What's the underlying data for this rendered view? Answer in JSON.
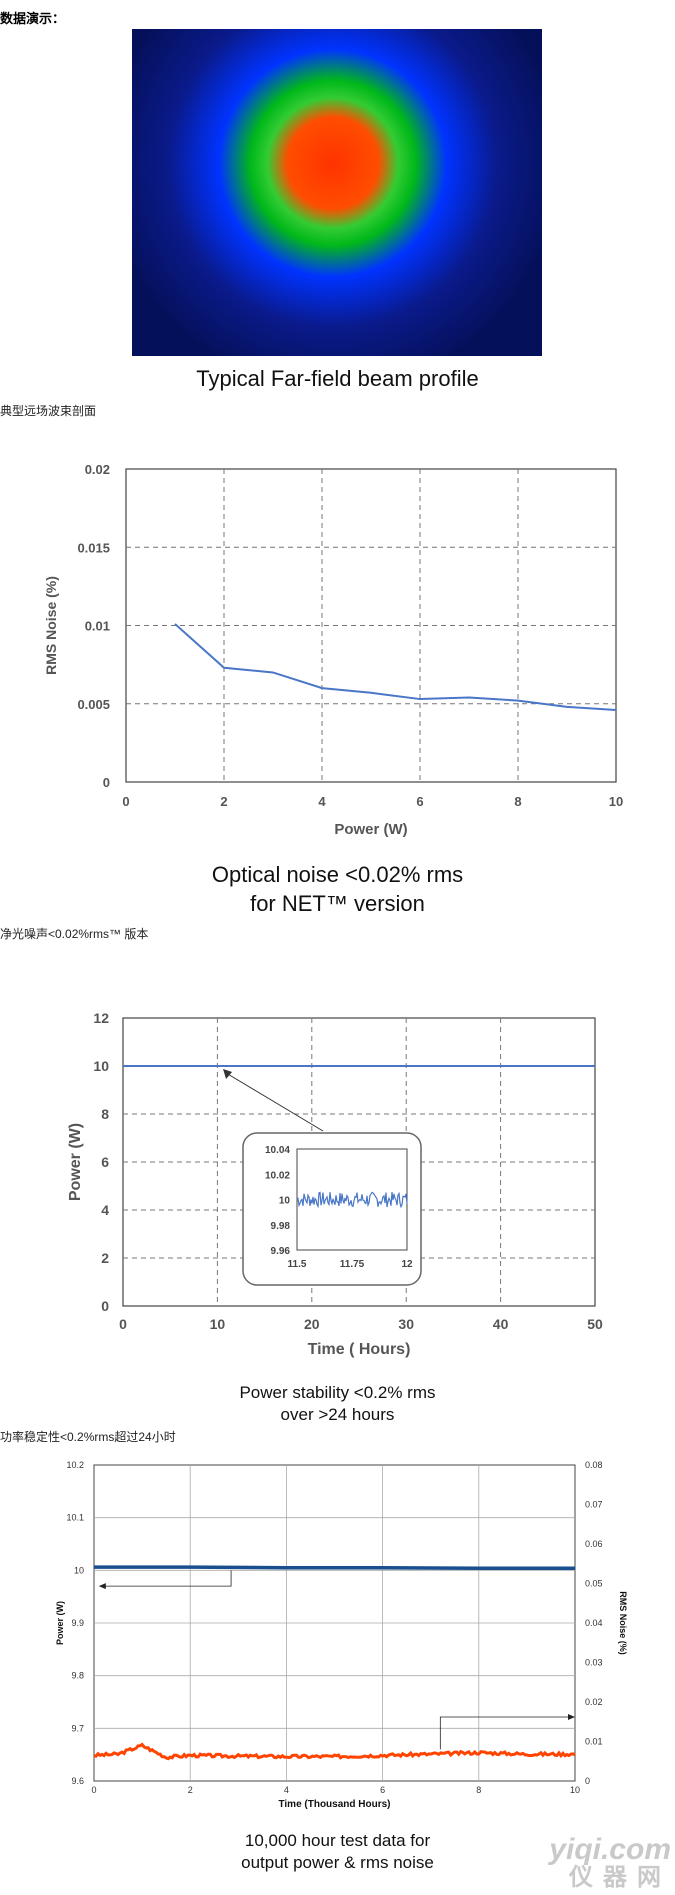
{
  "header": "数据演示：",
  "section1": {
    "caption": "Typical Far-field beam profile",
    "caption_cn": "典型远场波束剖面",
    "colors": [
      "#ff3300",
      "#ff4d00",
      "#33cc33",
      "#00b81a",
      "#0033ff",
      "#0a1a8a",
      "#05105a"
    ]
  },
  "chart_data": [
    {
      "type": "line",
      "title": "",
      "xlabel": "Power (W)",
      "ylabel": "RMS Noise (%)",
      "xlim": [
        0,
        10
      ],
      "ylim": [
        0,
        0.02
      ],
      "x_ticks": [
        0,
        2,
        4,
        6,
        8,
        10
      ],
      "y_ticks": [
        0,
        0.005,
        0.01,
        0.015,
        0.02
      ],
      "y_tick_labels": [
        "0",
        "0.005",
        "0.01",
        "0.015",
        "0.02"
      ],
      "grid": true,
      "series": [
        {
          "color": "#4a76c8",
          "x": [
            1,
            2,
            3,
            4,
            5,
            6,
            7,
            8,
            9,
            10
          ],
          "y": [
            0.0101,
            0.0073,
            0.007,
            0.006,
            0.0057,
            0.0053,
            0.0054,
            0.0052,
            0.0048,
            0.0046
          ]
        }
      ],
      "caption_lines": [
        "Optical noise <0.02% rms",
        "for NET™ version"
      ],
      "caption_cn": "净光噪声<0.02%rms™ 版本"
    },
    {
      "type": "line",
      "title": "",
      "xlabel": "Time ( Hours)",
      "ylabel": "Power (W)",
      "xlim": [
        0,
        50
      ],
      "ylim": [
        0,
        12
      ],
      "x_ticks": [
        0,
        10,
        20,
        30,
        40,
        50
      ],
      "y_ticks": [
        0,
        2,
        4,
        6,
        8,
        10,
        12
      ],
      "grid": true,
      "series": [
        {
          "color": "#4a76c8",
          "x": [
            0,
            10,
            20,
            30,
            40,
            50
          ],
          "y": [
            10,
            10,
            10,
            10,
            10,
            10
          ]
        }
      ],
      "inset": {
        "xlim": [
          11.5,
          12
        ],
        "ylim": [
          9.96,
          10.04
        ],
        "x_ticks": [
          11.5,
          11.75,
          12
        ],
        "y_ticks": [
          9.96,
          9.98,
          10,
          10.02,
          10.04
        ],
        "series": {
          "color": "#4a76c8",
          "mean": 10,
          "amplitude": 0.006
        }
      },
      "caption_lines": [
        "Power stability <0.2% rms",
        "over >24 hours"
      ],
      "caption_cn": "功率稳定性<0.2%rms超过24小时"
    },
    {
      "type": "line",
      "title": "",
      "xlabel": "Time (Thousand Hours)",
      "ylabel_left": "Power (W)",
      "ylabel_right": "RMS Noise (%)",
      "xlim": [
        0,
        10
      ],
      "ylim_left": [
        9.6,
        10.2
      ],
      "ylim_right": [
        0,
        0.08
      ],
      "x_ticks": [
        0,
        2,
        4,
        6,
        8,
        10
      ],
      "y_ticks_left": [
        9.6,
        9.7,
        9.8,
        9.9,
        10,
        10.1,
        10.2
      ],
      "y_ticks_right": [
        0,
        0.01,
        0.02,
        0.03,
        0.04,
        0.05,
        0.06,
        0.07,
        0.08
      ],
      "grid": true,
      "series": [
        {
          "axis": "left",
          "color": "#1a4f8f",
          "x": [
            0,
            2,
            4,
            6,
            8,
            10
          ],
          "y": [
            10.006,
            10.006,
            10.005,
            10.005,
            10.004,
            10.004
          ]
        },
        {
          "axis": "right",
          "color": "#ff4400",
          "x": [
            0,
            0.5,
            1,
            1.5,
            2,
            3,
            4,
            5,
            6,
            7,
            8,
            9,
            10
          ],
          "y": [
            0.0065,
            0.0068,
            0.009,
            0.006,
            0.0065,
            0.0063,
            0.0062,
            0.0062,
            0.0065,
            0.0068,
            0.0072,
            0.0068,
            0.0068
          ]
        }
      ],
      "caption_lines": [
        "10,000 hour test data for",
        "output power & rms noise"
      ]
    }
  ],
  "watermark": {
    "line1": "yiqi.com",
    "line2": "仪器网"
  }
}
